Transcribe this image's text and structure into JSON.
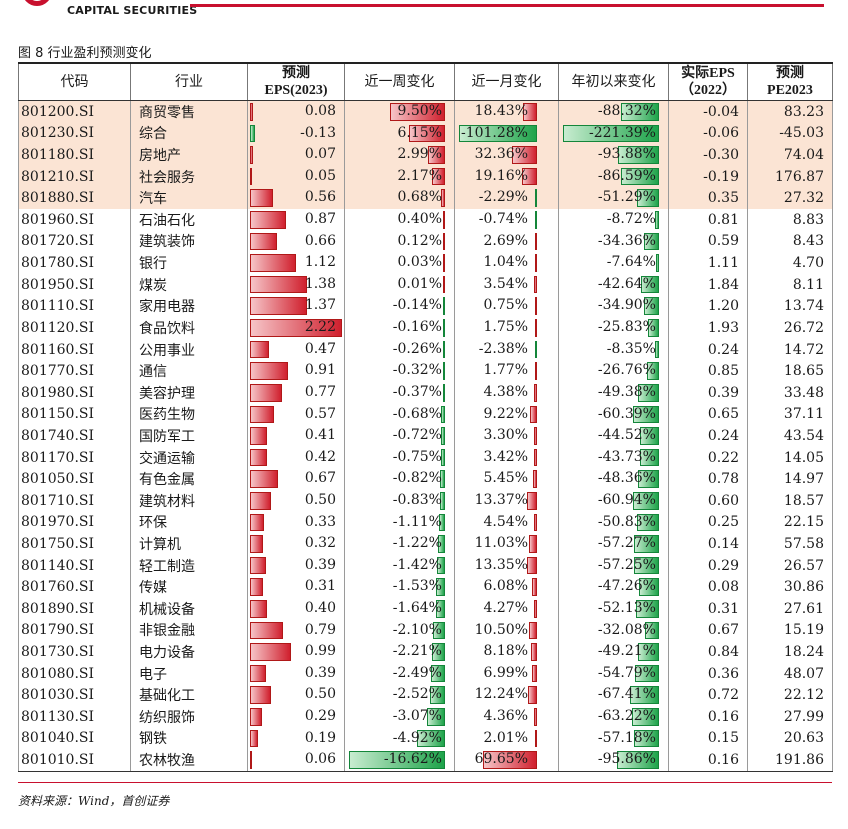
{
  "header": {
    "logo_text_en": "CAPITAL SECURITIES",
    "accent_color": "#c8102e"
  },
  "figure_title": "图 8 行业盈利预测变化",
  "table": {
    "columns": [
      {
        "key": "code",
        "label": "代码",
        "bold": false
      },
      {
        "key": "industry",
        "label": "行业",
        "bold": false
      },
      {
        "key": "eps2023",
        "label": "预测\nEPS(2023)",
        "bold": true
      },
      {
        "key": "week",
        "label": "近一周变化",
        "bold": false
      },
      {
        "key": "month",
        "label": "近一月变化",
        "bold": false
      },
      {
        "key": "ytd",
        "label": "年初以来变化",
        "bold": false
      },
      {
        "key": "eps2022",
        "label": "实际EPS\n（2022）",
        "bold": true
      },
      {
        "key": "pe2023",
        "label": "预测\nPE2023",
        "bold": true
      }
    ],
    "rows": [
      {
        "code": "801200.SI",
        "industry": "商贸零售",
        "eps2023": "0.08",
        "week": "9.50%",
        "month": "18.43%",
        "ytd": "-88.32%",
        "eps2022": "-0.04",
        "pe2023": "83.23",
        "highlight": true
      },
      {
        "code": "801230.SI",
        "industry": "综合",
        "eps2023": "-0.13",
        "week": "6.15%",
        "month": "-101.28%",
        "ytd": "-221.39%",
        "eps2022": "-0.06",
        "pe2023": "-45.03",
        "highlight": true
      },
      {
        "code": "801180.SI",
        "industry": "房地产",
        "eps2023": "0.07",
        "week": "2.99%",
        "month": "32.36%",
        "ytd": "-93.88%",
        "eps2022": "-0.30",
        "pe2023": "74.04",
        "highlight": true
      },
      {
        "code": "801210.SI",
        "industry": "社会服务",
        "eps2023": "0.05",
        "week": "2.17%",
        "month": "19.16%",
        "ytd": "-86.59%",
        "eps2022": "-0.19",
        "pe2023": "176.87",
        "highlight": true
      },
      {
        "code": "801880.SI",
        "industry": "汽车",
        "eps2023": "0.56",
        "week": "0.68%",
        "month": "-2.29%",
        "ytd": "-51.29%",
        "eps2022": "0.35",
        "pe2023": "27.32",
        "highlight": true
      },
      {
        "code": "801960.SI",
        "industry": "石油石化",
        "eps2023": "0.87",
        "week": "0.40%",
        "month": "-0.74%",
        "ytd": "-8.72%",
        "eps2022": "0.81",
        "pe2023": "8.83",
        "highlight": false
      },
      {
        "code": "801720.SI",
        "industry": "建筑装饰",
        "eps2023": "0.66",
        "week": "0.12%",
        "month": "2.69%",
        "ytd": "-34.36%",
        "eps2022": "0.59",
        "pe2023": "8.43",
        "highlight": false
      },
      {
        "code": "801780.SI",
        "industry": "银行",
        "eps2023": "1.12",
        "week": "0.03%",
        "month": "1.04%",
        "ytd": "-7.64%",
        "eps2022": "1.11",
        "pe2023": "4.70",
        "highlight": false
      },
      {
        "code": "801950.SI",
        "industry": "煤炭",
        "eps2023": "1.38",
        "week": "0.01%",
        "month": "3.54%",
        "ytd": "-42.64%",
        "eps2022": "1.84",
        "pe2023": "8.11",
        "highlight": false
      },
      {
        "code": "801110.SI",
        "industry": "家用电器",
        "eps2023": "1.37",
        "week": "-0.14%",
        "month": "0.75%",
        "ytd": "-34.90%",
        "eps2022": "1.20",
        "pe2023": "13.74",
        "highlight": false
      },
      {
        "code": "801120.SI",
        "industry": "食品饮料",
        "eps2023": "2.22",
        "week": "-0.16%",
        "month": "1.75%",
        "ytd": "-25.83%",
        "eps2022": "1.93",
        "pe2023": "26.72",
        "highlight": false
      },
      {
        "code": "801160.SI",
        "industry": "公用事业",
        "eps2023": "0.47",
        "week": "-0.26%",
        "month": "-2.38%",
        "ytd": "-8.35%",
        "eps2022": "0.24",
        "pe2023": "14.72",
        "highlight": false
      },
      {
        "code": "801770.SI",
        "industry": "通信",
        "eps2023": "0.91",
        "week": "-0.32%",
        "month": "1.77%",
        "ytd": "-26.76%",
        "eps2022": "0.85",
        "pe2023": "18.65",
        "highlight": false
      },
      {
        "code": "801980.SI",
        "industry": "美容护理",
        "eps2023": "0.77",
        "week": "-0.37%",
        "month": "4.38%",
        "ytd": "-49.38%",
        "eps2022": "0.39",
        "pe2023": "33.48",
        "highlight": false
      },
      {
        "code": "801150.SI",
        "industry": "医药生物",
        "eps2023": "0.57",
        "week": "-0.68%",
        "month": "9.22%",
        "ytd": "-60.39%",
        "eps2022": "0.65",
        "pe2023": "37.11",
        "highlight": false
      },
      {
        "code": "801740.SI",
        "industry": "国防军工",
        "eps2023": "0.41",
        "week": "-0.72%",
        "month": "3.30%",
        "ytd": "-44.52%",
        "eps2022": "0.24",
        "pe2023": "43.54",
        "highlight": false
      },
      {
        "code": "801170.SI",
        "industry": "交通运输",
        "eps2023": "0.42",
        "week": "-0.75%",
        "month": "3.42%",
        "ytd": "-43.73%",
        "eps2022": "0.22",
        "pe2023": "14.05",
        "highlight": false
      },
      {
        "code": "801050.SI",
        "industry": "有色金属",
        "eps2023": "0.67",
        "week": "-0.82%",
        "month": "5.45%",
        "ytd": "-48.36%",
        "eps2022": "0.78",
        "pe2023": "14.97",
        "highlight": false
      },
      {
        "code": "801710.SI",
        "industry": "建筑材料",
        "eps2023": "0.50",
        "week": "-0.83%",
        "month": "13.37%",
        "ytd": "-60.94%",
        "eps2022": "0.60",
        "pe2023": "18.57",
        "highlight": false
      },
      {
        "code": "801970.SI",
        "industry": "环保",
        "eps2023": "0.33",
        "week": "-1.11%",
        "month": "4.54%",
        "ytd": "-50.83%",
        "eps2022": "0.25",
        "pe2023": "22.15",
        "highlight": false
      },
      {
        "code": "801750.SI",
        "industry": "计算机",
        "eps2023": "0.32",
        "week": "-1.22%",
        "month": "11.03%",
        "ytd": "-57.27%",
        "eps2022": "0.14",
        "pe2023": "57.58",
        "highlight": false
      },
      {
        "code": "801140.SI",
        "industry": "轻工制造",
        "eps2023": "0.39",
        "week": "-1.42%",
        "month": "13.35%",
        "ytd": "-57.25%",
        "eps2022": "0.29",
        "pe2023": "26.57",
        "highlight": false
      },
      {
        "code": "801760.SI",
        "industry": "传媒",
        "eps2023": "0.31",
        "week": "-1.53%",
        "month": "6.08%",
        "ytd": "-47.26%",
        "eps2022": "0.08",
        "pe2023": "30.86",
        "highlight": false
      },
      {
        "code": "801890.SI",
        "industry": "机械设备",
        "eps2023": "0.40",
        "week": "-1.64%",
        "month": "4.27%",
        "ytd": "-52.13%",
        "eps2022": "0.31",
        "pe2023": "27.61",
        "highlight": false
      },
      {
        "code": "801790.SI",
        "industry": "非银金融",
        "eps2023": "0.79",
        "week": "-2.10%",
        "month": "10.50%",
        "ytd": "-32.08%",
        "eps2022": "0.67",
        "pe2023": "15.19",
        "highlight": false
      },
      {
        "code": "801730.SI",
        "industry": "电力设备",
        "eps2023": "0.99",
        "week": "-2.21%",
        "month": "8.18%",
        "ytd": "-49.21%",
        "eps2022": "0.84",
        "pe2023": "18.24",
        "highlight": false
      },
      {
        "code": "801080.SI",
        "industry": "电子",
        "eps2023": "0.39",
        "week": "-2.49%",
        "month": "6.99%",
        "ytd": "-54.79%",
        "eps2022": "0.36",
        "pe2023": "48.07",
        "highlight": false
      },
      {
        "code": "801030.SI",
        "industry": "基础化工",
        "eps2023": "0.50",
        "week": "-2.52%",
        "month": "12.24%",
        "ytd": "-67.41%",
        "eps2022": "0.72",
        "pe2023": "22.12",
        "highlight": false
      },
      {
        "code": "801130.SI",
        "industry": "纺织服饰",
        "eps2023": "0.29",
        "week": "-3.07%",
        "month": "4.36%",
        "ytd": "-63.22%",
        "eps2022": "0.16",
        "pe2023": "27.99",
        "highlight": false
      },
      {
        "code": "801040.SI",
        "industry": "钢铁",
        "eps2023": "0.19",
        "week": "-4.92%",
        "month": "2.01%",
        "ytd": "-57.18%",
        "eps2022": "0.15",
        "pe2023": "20.63",
        "highlight": false
      },
      {
        "code": "801010.SI",
        "industry": "农林牧渔",
        "eps2023": "0.06",
        "week": "-16.62%",
        "month": "69.65%",
        "ytd": "-95.86%",
        "eps2022": "0.16",
        "pe2023": "191.86",
        "highlight": false
      }
    ]
  },
  "bar_colors": {
    "positive": "#d0202e",
    "negative": "#1ea34a",
    "highlight_row": "#fbe4d4"
  },
  "source": "资料来源：Wind，首创证券"
}
